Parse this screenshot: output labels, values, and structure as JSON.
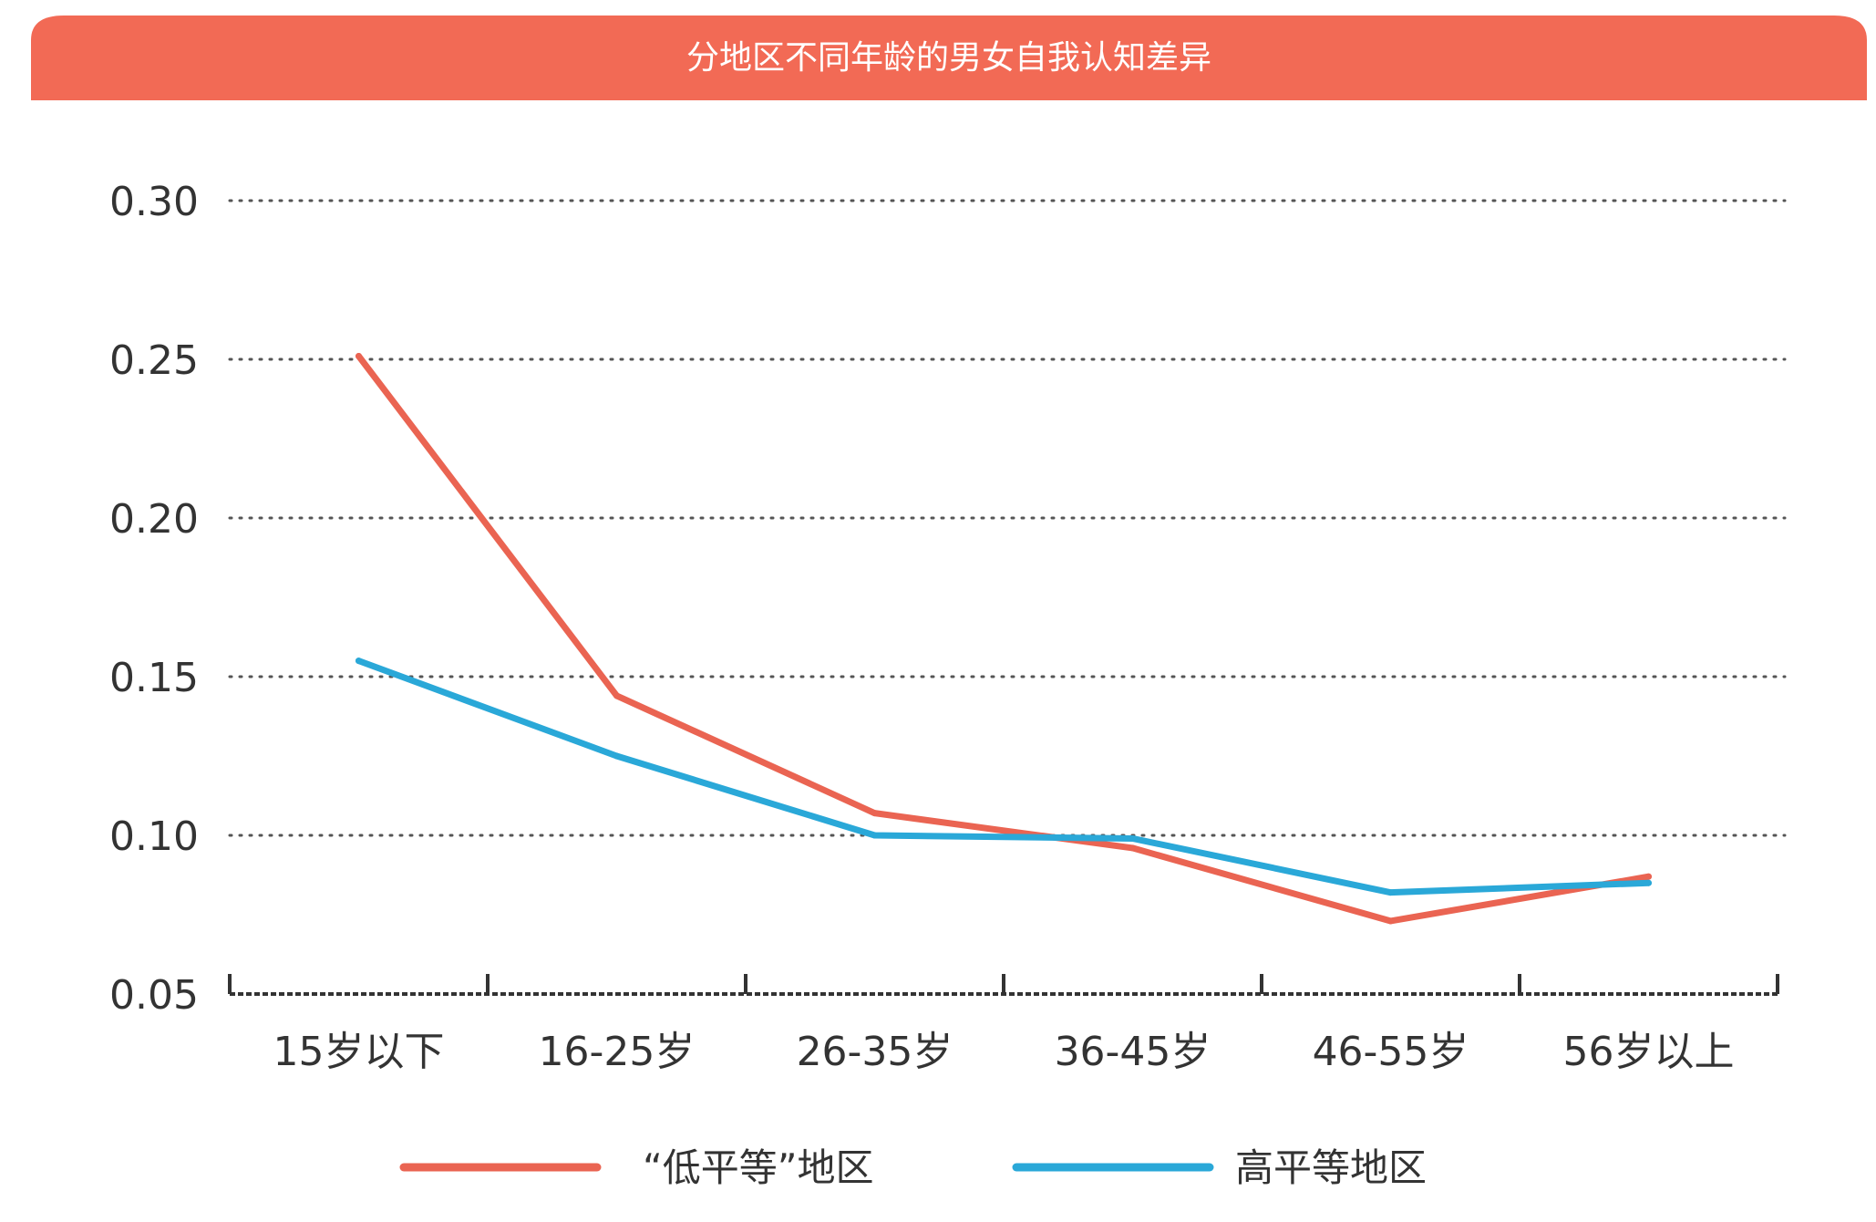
{
  "chart_data": {
    "type": "line",
    "title": "分地区不同年龄的男女自我认知差异",
    "categories": [
      "15岁以下",
      "16-25岁",
      "26-35岁",
      "36-45岁",
      "46-55岁",
      "56岁以上"
    ],
    "series": [
      {
        "name": "“低平等”地区",
        "color": "#ea6452",
        "values": [
          0.251,
          0.144,
          0.107,
          0.096,
          0.073,
          0.087
        ]
      },
      {
        "name": "高平等地区",
        "color": "#2aa8d8",
        "values": [
          0.155,
          0.125,
          0.1,
          0.099,
          0.082,
          0.085
        ]
      }
    ],
    "yticks": [
      "0.05",
      "0.10",
      "0.15",
      "0.20",
      "0.25",
      "0.30"
    ],
    "ylim": [
      0.05,
      0.3
    ],
    "grid": true,
    "legend": "bottom",
    "header_color": "#f26a55"
  }
}
